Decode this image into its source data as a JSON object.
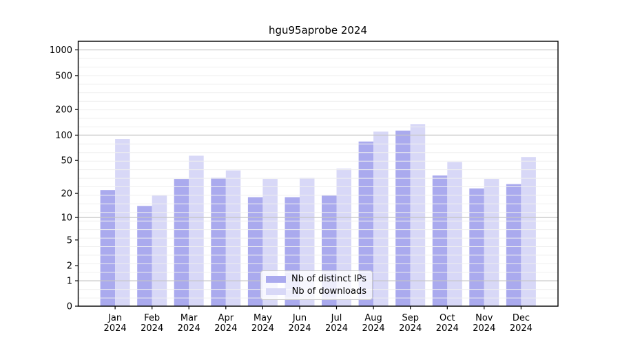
{
  "chart_data": {
    "type": "bar",
    "title": "hgu95aprobe 2024",
    "categories": [
      "Jan 2024",
      "Feb 2024",
      "Mar 2024",
      "Apr 2024",
      "May 2024",
      "Jun 2024",
      "Jul 2024",
      "Aug 2024",
      "Sep 2024",
      "Oct 2024",
      "Nov 2024",
      "Dec 2024"
    ],
    "series": [
      {
        "name": "Nb of distinct IPs",
        "color": "#aaaaee",
        "values": [
          22,
          14,
          30,
          31,
          18,
          18,
          19,
          84,
          113,
          33,
          23,
          26
        ]
      },
      {
        "name": "Nb of downloads",
        "color": "#d8d8f7",
        "values": [
          90,
          19,
          57,
          38,
          30,
          31,
          40,
          110,
          135,
          48,
          30,
          55
        ]
      }
    ],
    "yscale": "log1p",
    "yticks": [
      0,
      1,
      2,
      5,
      10,
      20,
      50,
      100,
      200,
      500,
      1000
    ],
    "ylim": [
      0,
      1400
    ],
    "xlabel": "",
    "ylabel": "",
    "grid": true,
    "grid_over_bars": true,
    "legend_position": "lower center",
    "colors": {
      "axis": "#000000",
      "major_grid": "#c6c6c6",
      "minor_grid": "#efefef",
      "background": "#ffffff"
    }
  }
}
